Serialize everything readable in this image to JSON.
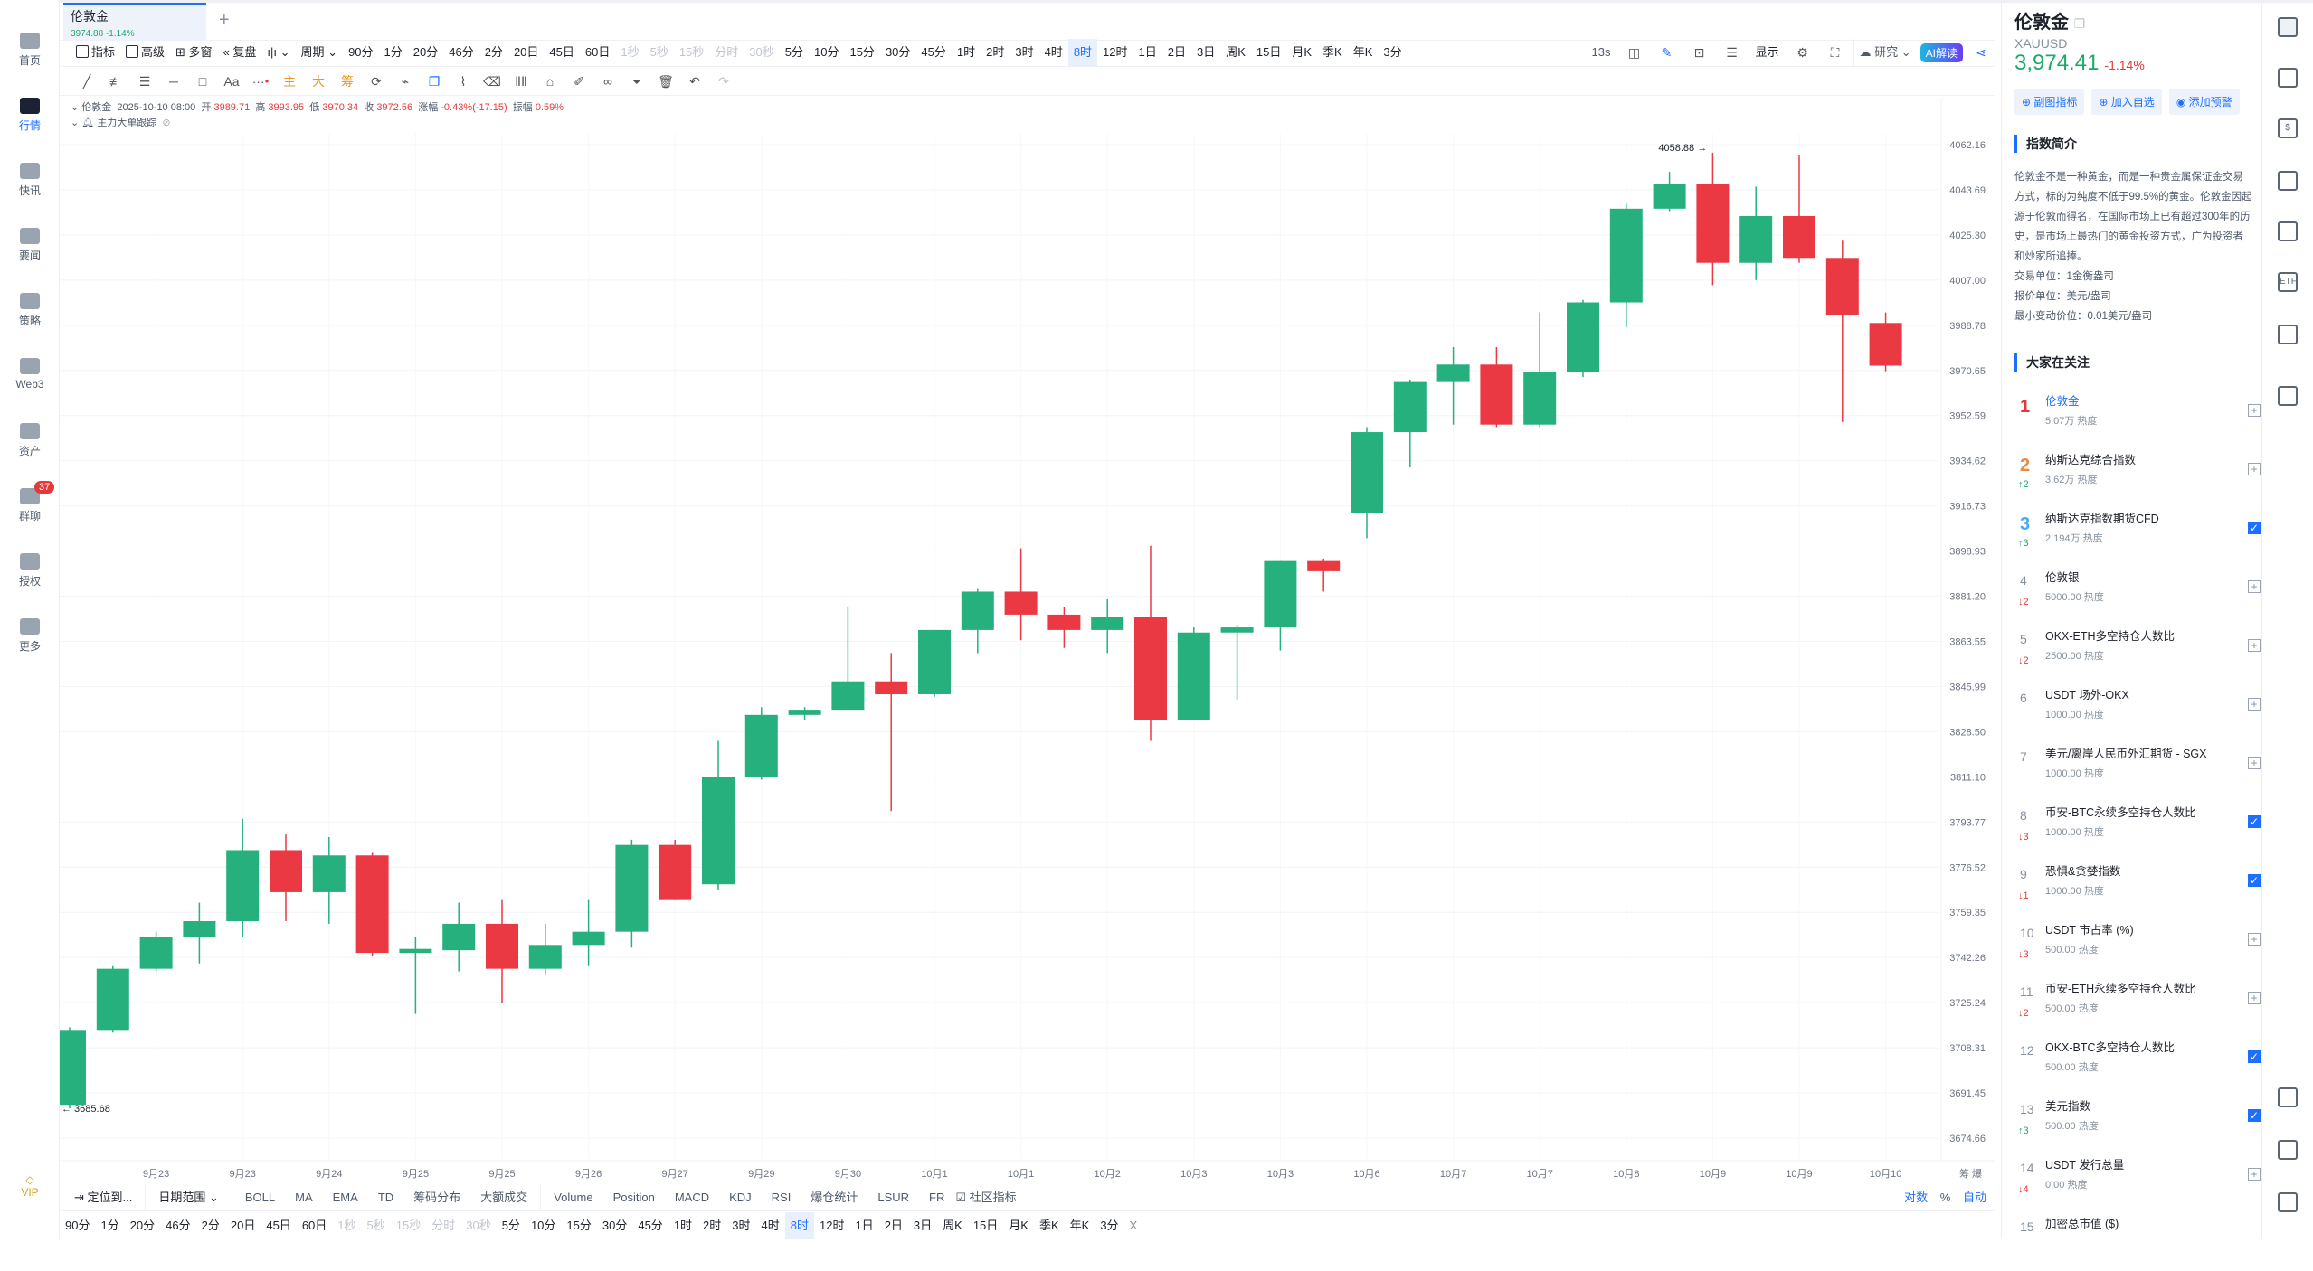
{
  "sidebar": {
    "items": [
      {
        "label": "首页"
      },
      {
        "label": "行情"
      },
      {
        "label": "快讯"
      },
      {
        "label": "要闻"
      },
      {
        "label": "策略"
      },
      {
        "label": "Web3"
      },
      {
        "label": "资产"
      },
      {
        "label": "群聊",
        "badge": "37"
      },
      {
        "label": "授权"
      },
      {
        "label": "更多"
      }
    ],
    "active": 1,
    "vip": "VIP"
  },
  "tab": {
    "title": "伦敦金",
    "sub": "3974.88 -1.14%",
    "add": "+"
  },
  "toolbar": {
    "indicator": "指标",
    "advanced": "高级",
    "multi": "多窗",
    "replay": "复盘",
    "period": "周期",
    "refresh": "13s",
    "display": "显示",
    "research": "研究",
    "ai": "AI解读"
  },
  "periods": [
    {
      "l": "90分"
    },
    {
      "l": "1分"
    },
    {
      "l": "20分"
    },
    {
      "l": "46分"
    },
    {
      "l": "2分"
    },
    {
      "l": "20日"
    },
    {
      "l": "45日"
    },
    {
      "l": "60日"
    },
    {
      "l": "1秒",
      "d": 1
    },
    {
      "l": "5秒",
      "d": 1
    },
    {
      "l": "15秒",
      "d": 1
    },
    {
      "l": "分时",
      "d": 1
    },
    {
      "l": "30秒",
      "d": 1
    },
    {
      "l": "5分"
    },
    {
      "l": "10分"
    },
    {
      "l": "15分"
    },
    {
      "l": "30分"
    },
    {
      "l": "45分"
    },
    {
      "l": "1时"
    },
    {
      "l": "2时"
    },
    {
      "l": "3时"
    },
    {
      "l": "4时"
    },
    {
      "l": "8时",
      "a": 1
    },
    {
      "l": "12时"
    },
    {
      "l": "1日"
    },
    {
      "l": "2日"
    },
    {
      "l": "3日"
    },
    {
      "l": "周K"
    },
    {
      "l": "15日"
    },
    {
      "l": "月K"
    },
    {
      "l": "季K"
    },
    {
      "l": "年K"
    },
    {
      "l": "3分"
    }
  ],
  "drawtools": {
    "aa": "Aa",
    "more": "···",
    "main": "主",
    "big": "大",
    "chip": "筹"
  },
  "info": {
    "name": "伦敦金",
    "time": "2025-10-10 08:00",
    "open_l": "开",
    "open": "3989.71",
    "high_l": "高",
    "high": "3993.95",
    "low_l": "低",
    "low": "3970.34",
    "close_l": "收",
    "close": "3972.56",
    "chg_l": "涨幅",
    "chg": "-0.43%(-17.15)",
    "amp_l": "振幅",
    "amp": "0.59%",
    "track": "主力大单跟踪"
  },
  "chart_data": {
    "type": "candlestick",
    "scale": "log",
    "ylim": [
      3674.66,
      4062.16
    ],
    "yticks": [
      "4062.16",
      "4043.69",
      "4025.30",
      "4007.00",
      "3988.78",
      "3970.65",
      "3952.59",
      "3934.62",
      "3916.73",
      "3898.93",
      "3881.20",
      "3863.55",
      "3845.99",
      "3828.50",
      "3811.10",
      "3793.77",
      "3776.52",
      "3759.35",
      "3742.26",
      "3725.24",
      "3708.31",
      "3691.45",
      "3674.66"
    ],
    "xticks": [
      "9月23",
      "9月23",
      "9月24",
      "9月25",
      "9月25",
      "9月26",
      "9月27",
      "9月29",
      "9月30",
      "10月1",
      "10月1",
      "10月2",
      "10月3",
      "10月3",
      "10月6",
      "10月7",
      "10月7",
      "10月8",
      "10月9",
      "10月9",
      "10月10"
    ],
    "high_label": "4058.88 →",
    "low_label": "← 3685.68",
    "ohlc": [
      [
        3687,
        3716,
        3685.68,
        3715
      ],
      [
        3715,
        3739,
        3714,
        3738
      ],
      [
        3738,
        3752,
        3737,
        3750
      ],
      [
        3750,
        3763,
        3740,
        3756
      ],
      [
        3756,
        3795,
        3750,
        3783
      ],
      [
        3783,
        3789,
        3756,
        3767
      ],
      [
        3767,
        3788,
        3755,
        3781
      ],
      [
        3781,
        3782,
        3743,
        3744
      ],
      [
        3744,
        3750,
        3721,
        3745.5
      ],
      [
        3745,
        3763,
        3737,
        3755
      ],
      [
        3755,
        3764,
        3725,
        3738
      ],
      [
        3738,
        3755,
        3735.6,
        3747
      ],
      [
        3747,
        3764,
        3739,
        3752
      ],
      [
        3752,
        3787,
        3746,
        3785
      ],
      [
        3785,
        3787,
        3764,
        3764
      ],
      [
        3770,
        3825,
        3768,
        3811
      ],
      [
        3811,
        3838,
        3810,
        3835
      ],
      [
        3835,
        3838,
        3833,
        3837
      ],
      [
        3837,
        3877,
        3837,
        3848
      ],
      [
        3848,
        3859,
        3798,
        3843
      ],
      [
        3843,
        3868,
        3842,
        3868
      ],
      [
        3868,
        3884,
        3859,
        3883
      ],
      [
        3883,
        3900,
        3864,
        3874
      ],
      [
        3874,
        3877,
        3861,
        3868
      ],
      [
        3868,
        3880,
        3859,
        3873
      ],
      [
        3873,
        3901,
        3825,
        3833
      ],
      [
        3833,
        3869,
        3833,
        3867
      ],
      [
        3867,
        3870,
        3841,
        3869
      ],
      [
        3869,
        3895,
        3860,
        3895
      ],
      [
        3895,
        3896,
        3883,
        3891
      ],
      [
        3914,
        3948,
        3904,
        3946
      ],
      [
        3946,
        3967,
        3932,
        3966
      ],
      [
        3966,
        3980,
        3949,
        3973
      ],
      [
        3973,
        3980,
        3948,
        3949
      ],
      [
        3949,
        3994,
        3948,
        3970
      ],
      [
        3970,
        3999,
        3968,
        3998
      ],
      [
        3998,
        4038,
        3988,
        4036
      ],
      [
        4036,
        4051,
        4035,
        4046
      ],
      [
        4046,
        4058.88,
        4005,
        4014
      ],
      [
        4014,
        4045,
        4007,
        4033
      ],
      [
        4033,
        4058,
        4014,
        4016
      ],
      [
        4016,
        4023,
        3950,
        3993
      ],
      [
        3989.71,
        3993.95,
        3970.34,
        3972.56
      ]
    ],
    "up_color": "#26b07e",
    "down_color": "#ea3943",
    "axis_corner": "筹 爆"
  },
  "bottom": {
    "locate": "定位到...",
    "range": "日期范围",
    "inds": [
      "BOLL",
      "MA",
      "EMA",
      "TD",
      "筹码分布",
      "大额成交"
    ],
    "subs": [
      "Volume",
      "Position",
      "MACD",
      "KDJ",
      "RSI",
      "爆仓统计",
      "LSUR",
      "FR"
    ],
    "community": "社区指标",
    "log": "对数",
    "pct": "%",
    "auto": "自动",
    "close": "X"
  },
  "panel": {
    "title": "伦敦金",
    "symbol": "XAUUSD",
    "price": "3,974.41",
    "change": "-1.14%",
    "btns": [
      "副图指标",
      "加入自选",
      "添加预警"
    ],
    "intro_title": "指数简介",
    "intro": "伦敦金不是一种黄金，而是一种贵金属保证金交易方式，标的为纯度不低于99.5%的黄金。伦敦金因起源于伦敦而得名，在国际市场上已有超过300年的历史，是市场上最热门的黄金投资方式，广为投资者和炒家所追捧。",
    "unit": "交易单位：1金衡盎司",
    "quote": "报价单位：美元/盎司",
    "tick": "最小变动价位：0.01美元/盎司",
    "watch_title": "大家在关注",
    "watch": [
      {
        "r": "1",
        "n": "伦敦金",
        "h": "5.07万 热度",
        "m": "",
        "c": false
      },
      {
        "r": "2",
        "n": "纳斯达克综合指数",
        "h": "3.62万 热度",
        "m": "↑2",
        "c": false
      },
      {
        "r": "3",
        "n": "纳斯达克指数期货CFD",
        "h": "2.194万 热度",
        "m": "↑3",
        "c": true
      },
      {
        "r": "4",
        "n": "伦敦银",
        "h": "5000.00 热度",
        "m": "↓2",
        "c": false
      },
      {
        "r": "5",
        "n": "OKX-ETH多空持仓人数比",
        "h": "2500.00 热度",
        "m": "↓2",
        "c": false
      },
      {
        "r": "6",
        "n": "USDT 场外-OKX",
        "h": "1000.00 热度",
        "m": "",
        "c": false
      },
      {
        "r": "7",
        "n": "美元/离岸人民币外汇期货 - SGX",
        "h": "1000.00 热度",
        "m": "",
        "c": false
      },
      {
        "r": "8",
        "n": "币安-BTC永续多空持仓人数比",
        "h": "1000.00 热度",
        "m": "↓3",
        "c": true
      },
      {
        "r": "9",
        "n": "恐惧&贪婪指数",
        "h": "1000.00 热度",
        "m": "↓1",
        "c": true
      },
      {
        "r": "10",
        "n": "USDT 市占率 (%)",
        "h": "500.00 热度",
        "m": "↓3",
        "c": false
      },
      {
        "r": "11",
        "n": "币安-ETH永续多空持仓人数比",
        "h": "500.00 热度",
        "m": "↓2",
        "c": false
      },
      {
        "r": "12",
        "n": "OKX-BTC多空持仓人数比",
        "h": "500.00 热度",
        "m": "",
        "c": true
      },
      {
        "r": "13",
        "n": "美元指数",
        "h": "500.00 热度",
        "m": "↑3",
        "c": true
      },
      {
        "r": "14",
        "n": "USDT 发行总量",
        "h": "0.00 热度",
        "m": "↓4",
        "c": false
      },
      {
        "r": "15",
        "n": "加密总市值 ($)",
        "h": "",
        "m": "",
        "c": false
      }
    ]
  },
  "rightIcons": [
    "list-icon",
    "document-icon",
    "dollar-icon",
    "chart-up-icon",
    "monitor-chart-icon",
    "etf-icon",
    "robot-icon",
    "swap-icon",
    "layout-icon",
    "headset-icon",
    "assistant-bot-icon"
  ],
  "rightIconText": {
    "etf": "ETF",
    "dollar": "$"
  }
}
